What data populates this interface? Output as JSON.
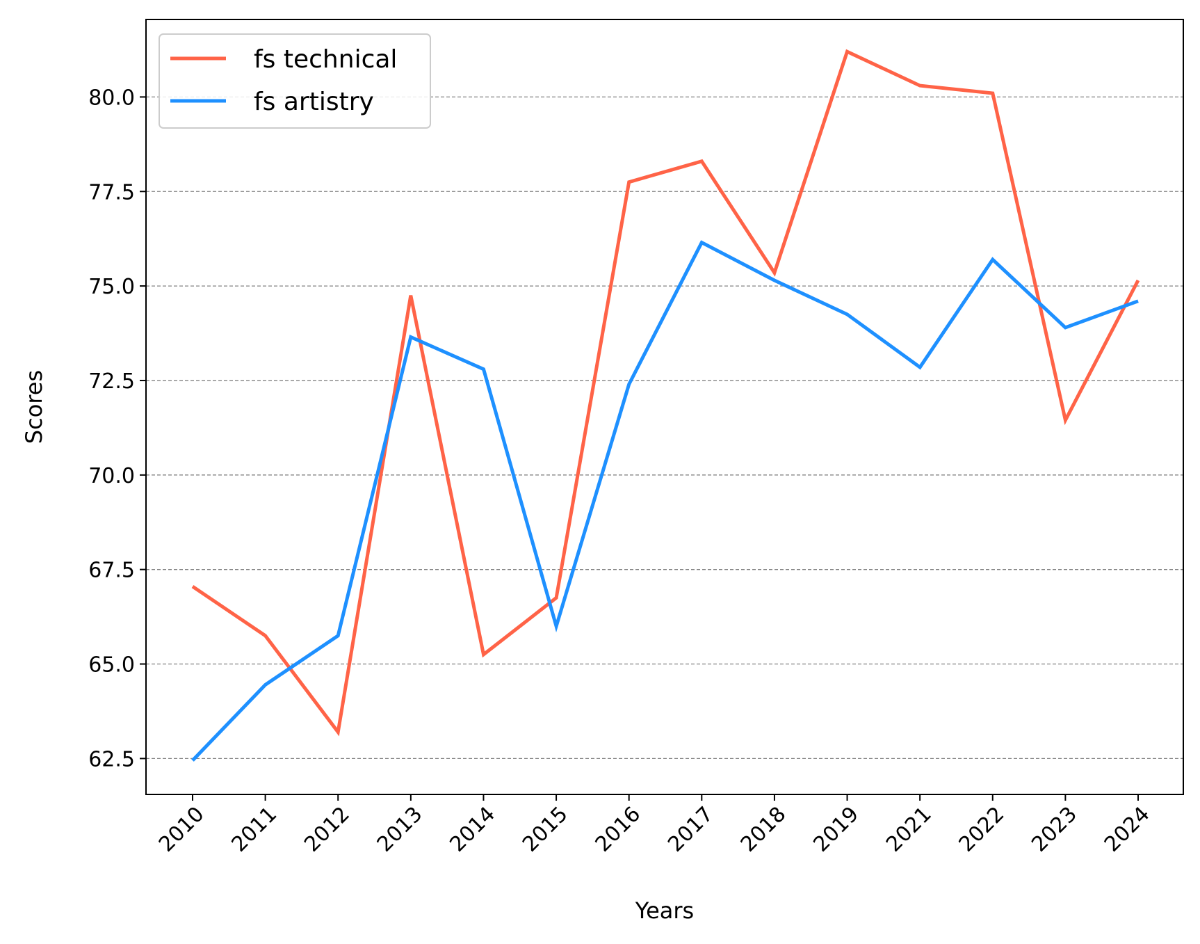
{
  "chart_data": {
    "type": "line",
    "title": "",
    "xlabel": "Years",
    "ylabel": "Scores",
    "categories": [
      "2010",
      "2011",
      "2012",
      "2013",
      "2014",
      "2015",
      "2016",
      "2017",
      "2018",
      "2019",
      "2021",
      "2022",
      "2023",
      "2024"
    ],
    "series": [
      {
        "name": "fs technical",
        "color": "#ff6347",
        "values": [
          67.05,
          65.75,
          63.2,
          74.75,
          65.25,
          66.75,
          77.75,
          78.3,
          75.35,
          81.2,
          80.3,
          80.1,
          71.45,
          75.15
        ]
      },
      {
        "name": "fs artistry",
        "color": "#1e90ff",
        "values": [
          62.45,
          64.45,
          65.75,
          73.65,
          72.8,
          66.0,
          72.4,
          76.15,
          75.15,
          74.25,
          72.85,
          75.7,
          73.9,
          74.6
        ]
      }
    ],
    "ylim": [
      61.55,
      82.05
    ],
    "yticks": [
      "62.5",
      "65.0",
      "67.5",
      "70.0",
      "72.5",
      "75.0",
      "77.5",
      "80.0"
    ],
    "grid": "horizontal dashed",
    "legend_position": "top-left"
  }
}
